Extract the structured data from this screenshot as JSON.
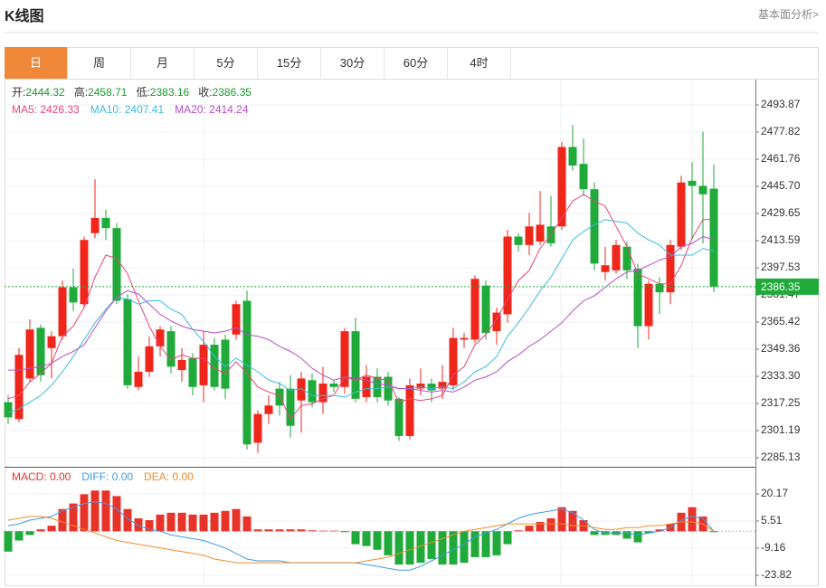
{
  "header": {
    "title": "K线图",
    "link": "基本面分析>"
  },
  "tabs": [
    "日",
    "周",
    "月",
    "5分",
    "15分",
    "30分",
    "60分",
    "4时"
  ],
  "active_tab": 0,
  "chart_data": [
    {
      "type": "candlestick",
      "ohlc_header": [
        {
          "label": "开:",
          "value": 2444.32
        },
        {
          "label": "高:",
          "value": 2458.71
        },
        {
          "label": "低:",
          "value": 2383.16
        },
        {
          "label": "收:",
          "value": 2386.35
        }
      ],
      "header_value_color": "#1a9b2c",
      "up_color": "#f0261b",
      "down_color": "#1faa3a",
      "open": [
        2318,
        2308,
        2332,
        2362,
        2350,
        2357,
        2386,
        2376,
        2418,
        2427,
        2421,
        2379,
        2327,
        2336,
        2351,
        2360,
        2337,
        2344,
        2328,
        2352,
        2355,
        2358,
        2378,
        2294,
        2311,
        2326,
        2326,
        2319,
        2331,
        2318,
        2329,
        2327,
        2360,
        2321,
        2333,
        2333,
        2320,
        2298,
        2326,
        2329,
        2326,
        2328,
        2355,
        2355,
        2387,
        2360,
        2370,
        2416,
        2411,
        2413,
        2422,
        2422,
        2469,
        2459,
        2444,
        2395,
        2396,
        2410,
        2397,
        2363,
        2388,
        2383,
        2410,
        2449,
        2446,
        2444.32
      ],
      "high": [
        2322,
        2350,
        2367,
        2364,
        2360,
        2390,
        2397,
        2416,
        2450,
        2432,
        2424,
        2382,
        2345,
        2357,
        2363,
        2363,
        2350,
        2347,
        2360,
        2356,
        2358,
        2378,
        2384,
        2313,
        2322,
        2330,
        2334,
        2336,
        2335,
        2339,
        2331,
        2362,
        2368,
        2340,
        2338,
        2336,
        2321,
        2332,
        2338,
        2332,
        2340,
        2362,
        2359,
        2393,
        2390,
        2374,
        2420,
        2418,
        2430,
        2443,
        2440,
        2472,
        2482,
        2474,
        2448,
        2410,
        2414,
        2413,
        2400,
        2390,
        2392,
        2414,
        2452,
        2460,
        2478,
        2458.71
      ],
      "low": [
        2305,
        2306,
        2330,
        2330,
        2332,
        2355,
        2372,
        2374,
        2415,
        2414,
        2376,
        2326,
        2325,
        2333,
        2345,
        2335,
        2330,
        2322,
        2318,
        2325,
        2320,
        2355,
        2290,
        2288,
        2305,
        2310,
        2297,
        2300,
        2315,
        2311,
        2324,
        2323,
        2318,
        2318,
        2318,
        2316,
        2295,
        2296,
        2322,
        2318,
        2320,
        2325,
        2350,
        2353,
        2355,
        2352,
        2365,
        2407,
        2405,
        2411,
        2410,
        2420,
        2455,
        2440,
        2396,
        2390,
        2394,
        2391,
        2350,
        2355,
        2370,
        2376,
        2408,
        2414,
        2412,
        2383.16
      ],
      "close": [
        2309,
        2346,
        2361,
        2334,
        2357,
        2386,
        2377,
        2414,
        2427,
        2421,
        2378,
        2328,
        2336,
        2351,
        2361,
        2339,
        2343,
        2327,
        2352,
        2327,
        2326,
        2376,
        2293,
        2311,
        2316,
        2316,
        2304,
        2332,
        2318,
        2329,
        2327,
        2360,
        2320,
        2333,
        2321,
        2319,
        2298,
        2328,
        2329,
        2325,
        2330,
        2356,
        2356,
        2391,
        2359,
        2371,
        2416,
        2411,
        2422,
        2423,
        2412,
        2469,
        2458,
        2444,
        2400,
        2399,
        2411,
        2396,
        2363,
        2388,
        2383,
        2411,
        2448,
        2446,
        2441,
        2386.35
      ],
      "series": [
        {
          "name": "MA5: 2426.33",
          "color": "#e8457b",
          "values": [
            2320,
            2322,
            2330,
            2335,
            2341,
            2357,
            2363,
            2374,
            2392,
            2405,
            2403,
            2394,
            2378,
            2363,
            2351,
            2343,
            2346,
            2344,
            2344,
            2338,
            2335,
            2342,
            2335,
            2327,
            2324,
            2322,
            2308,
            2316,
            2317,
            2320,
            2322,
            2333,
            2331,
            2334,
            2332,
            2331,
            2318,
            2320,
            2319,
            2320,
            2322,
            2334,
            2339,
            2352,
            2358,
            2367,
            2379,
            2390,
            2396,
            2409,
            2417,
            2427,
            2437,
            2441,
            2437,
            2434,
            2422,
            2410,
            2394,
            2391,
            2388,
            2388,
            2399,
            2415,
            2426,
            2426.33
          ]
        },
        {
          "name": "MA10: 2407.41",
          "color": "#3cbcdc",
          "values": [
            2312,
            2314,
            2318,
            2322,
            2328,
            2336,
            2345,
            2355,
            2365,
            2373,
            2380,
            2379,
            2376,
            2378,
            2378,
            2373,
            2370,
            2361,
            2354,
            2345,
            2339,
            2344,
            2340,
            2336,
            2331,
            2329,
            2325,
            2326,
            2322,
            2322,
            2322,
            2321,
            2324,
            2326,
            2326,
            2327,
            2326,
            2326,
            2327,
            2326,
            2327,
            2326,
            2330,
            2336,
            2339,
            2345,
            2357,
            2365,
            2374,
            2384,
            2392,
            2403,
            2414,
            2419,
            2423,
            2426,
            2425,
            2424,
            2418,
            2414,
            2411,
            2405,
            2405,
            2405,
            2409,
            2407.41
          ]
        },
        {
          "name": "MA20: 2414.24",
          "color": "#b44fc6",
          "values": [
            2337,
            2337,
            2338,
            2339,
            2341,
            2345,
            2348,
            2352,
            2362,
            2372,
            2380,
            2384,
            2382,
            2376,
            2370,
            2366,
            2363,
            2361,
            2360,
            2359,
            2360,
            2362,
            2358,
            2357,
            2355,
            2351,
            2348,
            2344,
            2338,
            2334,
            2331,
            2333,
            2332,
            2331,
            2329,
            2328,
            2326,
            2326,
            2325,
            2324,
            2325,
            2324,
            2327,
            2331,
            2333,
            2336,
            2342,
            2346,
            2351,
            2355,
            2360,
            2365,
            2372,
            2378,
            2381,
            2386,
            2391,
            2395,
            2396,
            2399,
            2402,
            2404,
            2410,
            2412,
            2416,
            2414.24
          ]
        }
      ],
      "ylim": [
        2280.31,
        2508.86
      ],
      "yticks": [
        {
          "value": 2285.13,
          "label": "2285.13"
        },
        {
          "value": 2301.19,
          "label": "2301.19"
        },
        {
          "value": 2317.25,
          "label": "2317.25"
        },
        {
          "value": 2333.3,
          "label": "2333.30"
        },
        {
          "value": 2349.36,
          "label": "2349.36"
        },
        {
          "value": 2365.42,
          "label": "2365.42"
        },
        {
          "value": 2381.47,
          "label": "2381.47"
        },
        {
          "value": 2397.53,
          "label": "2397.53"
        },
        {
          "value": 2413.59,
          "label": "2413.59"
        },
        {
          "value": 2429.65,
          "label": "2429.65"
        },
        {
          "value": 2445.7,
          "label": "2445.70"
        },
        {
          "value": 2461.76,
          "label": "2461.76"
        },
        {
          "value": 2477.82,
          "label": "2477.82"
        },
        {
          "value": 2493.87,
          "label": "2493.87"
        }
      ],
      "grid": true,
      "last_price": 2386.35,
      "last_price_color": "#1faa3a"
    },
    {
      "type": "macd",
      "series": [
        {
          "name": "MACD: 0.00",
          "style": "bar",
          "color": "#e8332a",
          "negative_color": "#1faa3a",
          "values": [
            -11,
            -5,
            -2,
            1,
            3,
            12,
            15,
            20,
            22,
            22,
            19,
            12,
            7,
            6,
            9,
            10,
            10,
            9,
            9,
            10,
            11,
            12,
            8,
            1,
            1,
            1,
            1,
            1,
            0.5,
            0.3,
            0.3,
            -0.5,
            -7,
            -8,
            -10,
            -13,
            -18,
            -18,
            -17,
            -15,
            -18,
            -18,
            -17,
            -14,
            -14,
            -13,
            -7,
            0.5,
            3,
            5,
            7,
            13,
            11,
            6,
            -2,
            -2,
            -2,
            -4,
            -6,
            -1,
            1,
            4,
            10,
            13,
            8,
            -0.5
          ]
        },
        {
          "name": "DIFF: 0.00",
          "style": "line",
          "color": "#3d9be9",
          "values": [
            3,
            4,
            6,
            7,
            8,
            11,
            13,
            15,
            16,
            15,
            12,
            7,
            3,
            1,
            0,
            -2,
            -3,
            -4,
            -5,
            -7,
            -9,
            -12,
            -15,
            -16,
            -16,
            -16,
            -17,
            -17,
            -17,
            -17,
            -17,
            -17,
            -17,
            -18,
            -19,
            -20,
            -21,
            -21,
            -19,
            -16,
            -13,
            -10,
            -7,
            -3,
            -1,
            1,
            4,
            7,
            9,
            10,
            11,
            12,
            10,
            6,
            1,
            -1,
            -1,
            -1,
            -2,
            -1,
            0,
            2,
            6,
            8,
            7,
            0
          ]
        },
        {
          "name": "DEA: 0.00",
          "style": "line",
          "color": "#f08c2b",
          "values": [
            6,
            7,
            8,
            8,
            7,
            5,
            3,
            1,
            -1,
            -3,
            -5,
            -6,
            -7,
            -8,
            -9,
            -10,
            -11,
            -12,
            -13,
            -15,
            -16,
            -17,
            -17,
            -17,
            -17,
            -17,
            -17,
            -17,
            -17,
            -17,
            -17,
            -17,
            -17,
            -16,
            -15,
            -14,
            -12,
            -10,
            -8,
            -6,
            -4,
            -2,
            0,
            1,
            2,
            3,
            4,
            4,
            4,
            4,
            4,
            4,
            3,
            3,
            2,
            1,
            1,
            2,
            2,
            3,
            3,
            4,
            5,
            5,
            4,
            0
          ]
        }
      ],
      "ylim": [
        -29.68,
        33.86
      ],
      "yticks": [
        -23.82,
        -9.16,
        5.51,
        20.17
      ],
      "grid": true
    }
  ]
}
